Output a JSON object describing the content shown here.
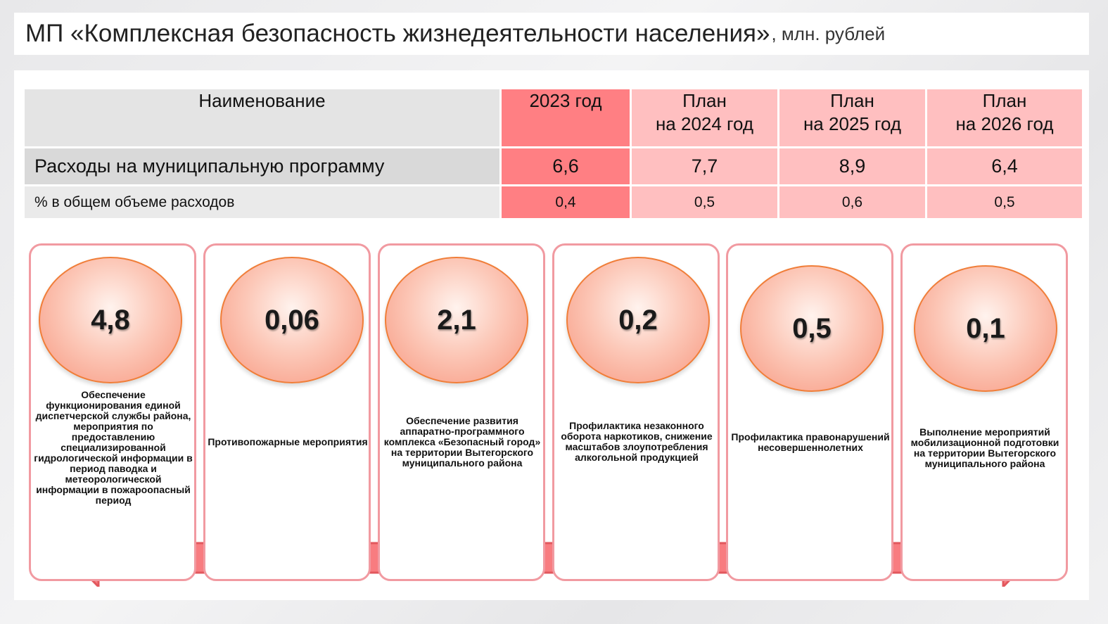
{
  "title": {
    "main": "МП «Комплексная безопасность жизнедеятельности населения»",
    "sub": ", млн. рублей"
  },
  "table": {
    "headers": {
      "name": "Наименование",
      "y2023": "2023 год",
      "p2024_line1": "План",
      "p2024_line2": "на 2024 год",
      "p2025_line1": "План",
      "p2025_line2": "на 2025 год",
      "p2026_line1": "План",
      "p2026_line2": "на 2026 год"
    },
    "rows": [
      {
        "label": "Расходы на муниципальную программу",
        "values": [
          "6,6",
          "7,7",
          "8,9",
          "6,4"
        ]
      },
      {
        "label": "% в общем объеме расходов",
        "values": [
          "0,4",
          "0,5",
          "0,6",
          "0,5"
        ]
      }
    ]
  },
  "cards": [
    {
      "value": "4,8",
      "text": "Обеспечение функционирования единой диспетчерской службы района, мероприятия по предоставлению специализированной гидрологической информации в период паводка и метеорологической информации в пожароопасный период"
    },
    {
      "value": "0,06",
      "text": "Противопожарные мероприятия"
    },
    {
      "value": "2,1",
      "text": "Обеспечение развития аппаратно-программного комплекса «Безопасный город» на территории Вытегорского муниципального района"
    },
    {
      "value": "0,2",
      "text": "Профилактика незаконного оборота наркотиков, снижение масштабов злоупотребления алкогольной продукцией"
    },
    {
      "value": "0,5",
      "text": "Профилактика правонарушений несовершеннолетних"
    },
    {
      "value": "0,1",
      "text": "Выполнение мероприятий мобилизационной подготовки на территории Вытегорского муниципального района"
    }
  ],
  "colors": {
    "accent_strong": "#ff7f83",
    "accent_soft": "#ffbfc0",
    "card_border": "#f19aa1",
    "bubble_border": "#f07e39",
    "arrow_fill": "#f87c80"
  }
}
